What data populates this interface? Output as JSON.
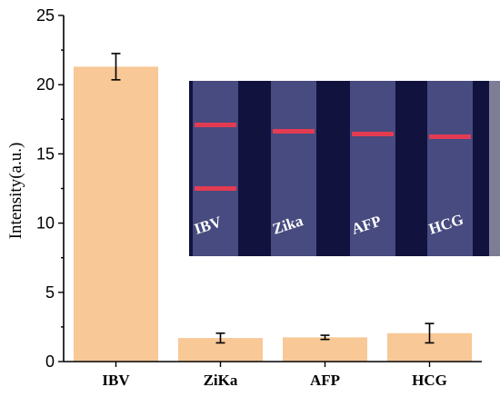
{
  "chart_data": {
    "type": "bar",
    "categories": [
      "IBV",
      "ZiKa",
      "AFP",
      "HCG"
    ],
    "values": [
      21.3,
      1.7,
      1.75,
      2.05
    ],
    "errors": [
      0.95,
      0.35,
      0.15,
      0.7
    ],
    "xlabel": "",
    "ylabel": "Intensity(a.u.)",
    "ylim": [
      0,
      25
    ],
    "yticks": [
      0,
      5,
      10,
      15,
      20,
      25
    ],
    "grid": false,
    "bar_color": "#f8c896",
    "inset": {
      "description_labels": [
        "IBV",
        "Zika",
        "AFP",
        "HCG"
      ],
      "background_color": "#12133f",
      "strip_color": "#5a5f96",
      "line_color": "#ff3a4a"
    }
  }
}
